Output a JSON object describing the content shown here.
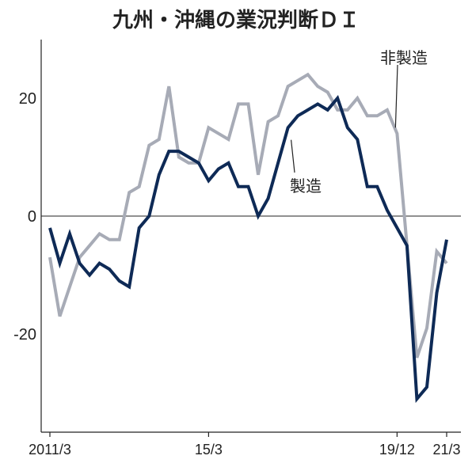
{
  "chart_data": {
    "type": "line",
    "title": "九州・沖縄の業況判断ＤＩ",
    "xlabel": "",
    "ylabel": "",
    "x_range": [
      2011.0,
      2021.5
    ],
    "ylim": [
      -37,
      30
    ],
    "y_ticks": [
      20,
      0,
      -20
    ],
    "x_ticks": [
      {
        "x": 2011.25,
        "label": "2011/3"
      },
      {
        "x": 2015.25,
        "label": "15/3"
      },
      {
        "x": 2020.0,
        "label": "19/12"
      },
      {
        "x": 2021.25,
        "label": "21/3"
      }
    ],
    "zero_line": true,
    "series": [
      {
        "name": "製造",
        "color": "#0e2a56",
        "x": [
          2011.25,
          2011.5,
          2011.75,
          2012.0,
          2012.25,
          2012.5,
          2012.75,
          2013.0,
          2013.25,
          2013.5,
          2013.75,
          2014.0,
          2014.25,
          2014.5,
          2014.75,
          2015.0,
          2015.25,
          2015.5,
          2015.75,
          2016.0,
          2016.25,
          2016.5,
          2016.75,
          2017.0,
          2017.25,
          2017.5,
          2017.75,
          2018.0,
          2018.25,
          2018.5,
          2018.75,
          2019.0,
          2019.25,
          2019.5,
          2019.75,
          2020.0,
          2020.25,
          2020.5,
          2020.75,
          2021.0,
          2021.25
        ],
        "values": [
          -2,
          -8,
          -3,
          -8,
          -10,
          -8,
          -9,
          -11,
          -12,
          -2,
          0,
          7,
          11,
          11,
          10,
          9,
          6,
          8,
          9,
          5,
          5,
          0,
          3,
          9,
          15,
          17,
          18,
          19,
          18,
          20,
          15,
          13,
          5,
          5,
          1,
          -2,
          -5,
          -31,
          -29,
          -13,
          -4
        ]
      },
      {
        "name": "非製造",
        "color": "#a7abb6",
        "x": [
          2011.25,
          2011.5,
          2011.75,
          2012.0,
          2012.25,
          2012.5,
          2012.75,
          2013.0,
          2013.25,
          2013.5,
          2013.75,
          2014.0,
          2014.25,
          2014.5,
          2014.75,
          2015.0,
          2015.25,
          2015.5,
          2015.75,
          2016.0,
          2016.25,
          2016.5,
          2016.75,
          2017.0,
          2017.25,
          2017.5,
          2017.75,
          2018.0,
          2018.25,
          2018.5,
          2018.75,
          2019.0,
          2019.25,
          2019.5,
          2019.75,
          2020.0,
          2020.25,
          2020.5,
          2020.75,
          2021.0,
          2021.25
        ],
        "values": [
          -7,
          -17,
          -12,
          -7,
          -5,
          -3,
          -4,
          -4,
          4,
          5,
          12,
          13,
          22,
          10,
          9,
          9,
          15,
          14,
          13,
          19,
          19,
          7,
          16,
          17,
          22,
          23,
          24,
          22,
          21,
          18,
          18,
          20,
          17,
          17,
          18,
          14,
          -5,
          -24,
          -19,
          -6,
          -8
        ]
      }
    ],
    "series_labels": [
      {
        "text": "非製造",
        "anchor_x": 2020.0,
        "anchor_y": 15
      },
      {
        "text": "製造",
        "anchor_x": 2017.25,
        "anchor_y": 14
      }
    ]
  }
}
